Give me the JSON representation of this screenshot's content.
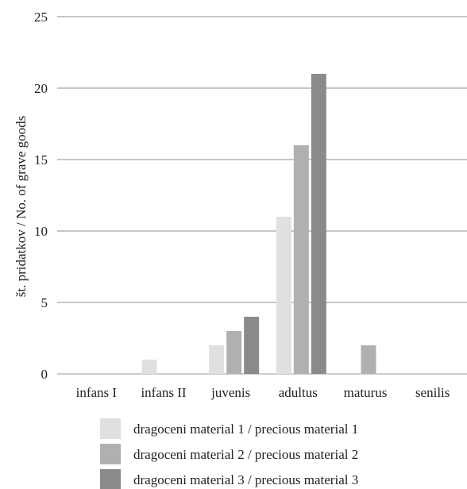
{
  "chart_data": {
    "type": "bar",
    "categories": [
      "infans I",
      "infans II",
      "juvenis",
      "adultus",
      "maturus",
      "senilis"
    ],
    "series": [
      {
        "name": "dragoceni material 1 / precious material 1",
        "values": [
          0,
          1,
          2,
          11,
          0,
          0
        ],
        "color": "#e0e0e0"
      },
      {
        "name": "dragoceni material 2 / precious material 2",
        "values": [
          0,
          0,
          3,
          16,
          2,
          0
        ],
        "color": "#b0b0b0"
      },
      {
        "name": "dragoceni material 3 / precious material 3",
        "values": [
          0,
          0,
          4,
          21,
          0,
          0
        ],
        "color": "#8a8a8a"
      }
    ],
    "ylabel": "št. pridatkov / No. of grave goods",
    "xlabel": "",
    "ylim": [
      0,
      25
    ],
    "yticks": [
      "0",
      "5",
      "10",
      "15",
      "20",
      "25"
    ],
    "grid": true,
    "legend_position": "bottom"
  }
}
